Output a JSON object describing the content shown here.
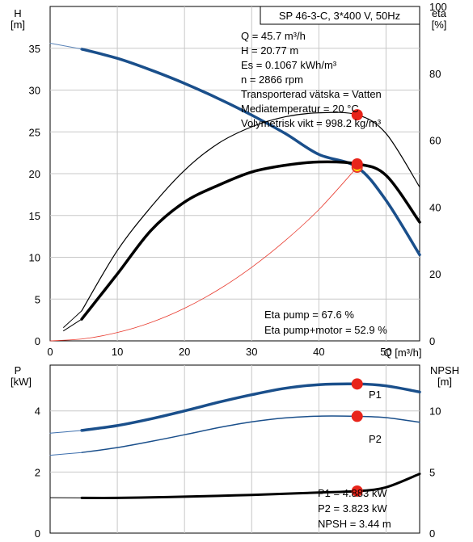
{
  "chart_data": [
    {
      "type": "line",
      "title": "SP 46-3-C, 3*400 V, 50Hz",
      "xlabel": "Q [m³/h]",
      "ylabel_left": [
        "H",
        "[m]"
      ],
      "ylabel_right": [
        "eta",
        "[%]"
      ],
      "xlim": [
        0,
        55
      ],
      "ylim_left": [
        0,
        40
      ],
      "ylim_right": [
        0,
        100
      ],
      "x_ticks": [
        0,
        10,
        20,
        30,
        40,
        50
      ],
      "y_left_ticks": [
        0,
        5,
        10,
        15,
        20,
        25,
        30,
        35
      ],
      "y_right_ticks": [
        0,
        20,
        40,
        60,
        80,
        100
      ],
      "grid": true,
      "info_lines": [
        "Q = 45.7 m³/h",
        "H = 20.77 m",
        "Es = 0.1067 kWh/m³",
        "n = 2866 rpm",
        "Transporterad vätska = Vatten",
        "Mediatemperatur = 20 °C",
        "Volymetrisk vikt = 998.2 kg/m³"
      ],
      "eta_lines": [
        "Eta pump = 67.6 %",
        "Eta pump+motor = 52.9 %"
      ],
      "series": [
        {
          "axis": "left",
          "color": "#1a4f8b",
          "width": 3.5,
          "dashed": false,
          "x": [
            4.7,
            10,
            15,
            20,
            25,
            30,
            35,
            40,
            45.7,
            50,
            55
          ],
          "y": [
            34.9,
            33.8,
            32.4,
            30.8,
            29.0,
            27.0,
            24.8,
            22.3,
            20.77,
            16.8,
            10.3
          ]
        },
        {
          "axis": "left",
          "color": "#5b84b8",
          "width": 1,
          "dashed": false,
          "x": [
            0,
            4.7
          ],
          "y": [
            35.6,
            34.9
          ]
        },
        {
          "axis": "right",
          "color": "#000000",
          "width": 1.2,
          "dashed": false,
          "x": [
            4.7,
            10,
            15,
            20,
            25,
            30,
            35,
            40,
            45.7,
            50,
            55
          ],
          "y": [
            9,
            27,
            40,
            51,
            59,
            64,
            67,
            68.2,
            67.6,
            62,
            46
          ]
        },
        {
          "axis": "right",
          "color": "#000000",
          "width": 1,
          "dashed": false,
          "x": [
            2,
            4.7
          ],
          "y": [
            4,
            9
          ]
        },
        {
          "axis": "right",
          "color": "#000000",
          "width": 3.5,
          "dashed": false,
          "x": [
            4.7,
            10,
            15,
            20,
            25,
            30,
            35,
            40,
            45.7,
            50,
            55
          ],
          "y": [
            6.5,
            20,
            33,
            41.5,
            46.5,
            50.5,
            52.5,
            53.5,
            52.9,
            49.5,
            35.5
          ]
        },
        {
          "axis": "right",
          "color": "#000000",
          "width": 1,
          "dashed": false,
          "x": [
            2,
            4.7
          ],
          "y": [
            3,
            6.5
          ]
        },
        {
          "axis": "left",
          "color": "#e83a2e",
          "width": 0.8,
          "dashed": false,
          "x": [
            0,
            5,
            10,
            15,
            20,
            25,
            30,
            35,
            40,
            45.7
          ],
          "y": [
            0,
            0.25,
            1.0,
            2.2,
            3.9,
            6.1,
            8.8,
            12.0,
            15.7,
            20.77
          ]
        }
      ],
      "points": [
        {
          "axis": "left",
          "x": 45.7,
          "y": 20.77,
          "fill": "#ffe600",
          "stroke": "#e83a2e"
        },
        {
          "axis": "right",
          "x": 45.7,
          "y": 67.6,
          "fill": "#e8241a",
          "stroke": "#e8241a"
        },
        {
          "axis": "right",
          "x": 45.7,
          "y": 52.9,
          "fill": "#e8241a",
          "stroke": "#e8241a"
        }
      ]
    },
    {
      "type": "line",
      "xlim": [
        0,
        55
      ],
      "ylim_left": [
        0,
        5.5
      ],
      "ylim_right": [
        0,
        13.75
      ],
      "ylabel_left": [
        "P",
        "[kW]"
      ],
      "ylabel_right": [
        "NPSH",
        "[m]"
      ],
      "y_left_ticks": [
        0,
        2,
        4
      ],
      "y_right_ticks": [
        0,
        5,
        10
      ],
      "grid": true,
      "series": [
        {
          "name": "P1",
          "axis": "left",
          "color": "#1a4f8b",
          "width": 3.5,
          "dashed": false,
          "x": [
            4.7,
            10,
            15,
            20,
            25,
            30,
            35,
            40,
            45.7,
            50,
            55
          ],
          "y": [
            3.36,
            3.52,
            3.74,
            4.0,
            4.28,
            4.53,
            4.74,
            4.86,
            4.883,
            4.82,
            4.62
          ]
        },
        {
          "axis": "left",
          "color": "#3d6fae",
          "width": 1,
          "dashed": false,
          "x": [
            0,
            4.7
          ],
          "y": [
            3.27,
            3.36
          ]
        },
        {
          "name": "P2",
          "axis": "left",
          "color": "#1a4f8b",
          "width": 1.5,
          "dashed": false,
          "x": [
            4.7,
            10,
            15,
            20,
            25,
            30,
            35,
            40,
            45.7,
            50,
            55
          ],
          "y": [
            2.64,
            2.8,
            3.0,
            3.22,
            3.45,
            3.64,
            3.77,
            3.83,
            3.823,
            3.78,
            3.63
          ]
        },
        {
          "axis": "left",
          "color": "#3d6fae",
          "width": 1,
          "dashed": false,
          "x": [
            0,
            4.7
          ],
          "y": [
            2.55,
            2.64
          ]
        },
        {
          "axis": "right",
          "color": "#000000",
          "width": 3,
          "dashed": false,
          "x": [
            4.7,
            10,
            15,
            20,
            25,
            30,
            35,
            40,
            45.7,
            50,
            55
          ],
          "y": [
            2.88,
            2.88,
            2.92,
            2.98,
            3.05,
            3.13,
            3.22,
            3.32,
            3.44,
            3.75,
            4.85
          ]
        },
        {
          "axis": "right",
          "color": "#000000",
          "width": 1,
          "dashed": false,
          "x": [
            0,
            4.7
          ],
          "y": [
            2.9,
            2.88
          ]
        }
      ],
      "points": [
        {
          "axis": "left",
          "x": 45.7,
          "y": 4.883,
          "fill": "#e8241a",
          "stroke": "#e8241a"
        },
        {
          "axis": "left",
          "x": 45.7,
          "y": 3.823,
          "fill": "#e8241a",
          "stroke": "#e8241a"
        },
        {
          "axis": "right",
          "x": 45.7,
          "y": 3.44,
          "fill": "#e8241a",
          "stroke": "#e8241a"
        }
      ],
      "curve_labels": [
        "P1",
        "P2"
      ],
      "readout_lines": [
        "P1 = 4.883 kW",
        "P2 = 3.823 kW",
        "NPSH = 3.44 m"
      ]
    }
  ]
}
